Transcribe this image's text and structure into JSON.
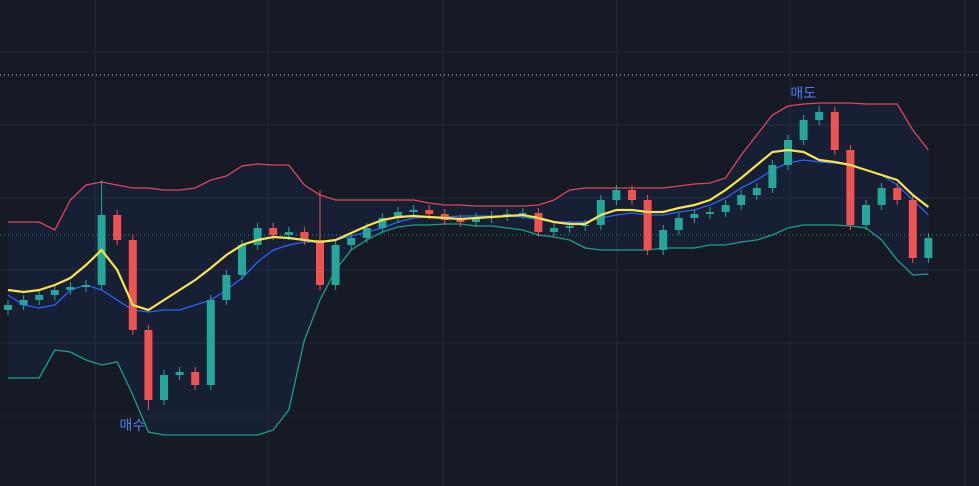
{
  "chart_data": {
    "type": "candlestick",
    "ylim": [
      0,
      486
    ],
    "up_color": "#26a69a",
    "down_color": "#ef5350",
    "open": [
      176,
      181,
      186,
      191,
      196,
      199,
      201,
      271,
      246,
      156,
      86,
      111,
      114,
      101,
      186,
      211,
      241,
      258,
      251,
      254,
      246,
      201,
      241,
      248,
      258,
      268,
      274,
      276,
      272,
      266,
      264,
      268,
      270,
      272,
      273,
      254,
      258,
      260,
      261,
      286,
      296,
      286,
      236,
      256,
      268,
      272,
      274,
      281,
      291,
      298,
      321,
      346,
      366,
      374,
      336,
      261,
      281,
      298,
      286,
      228
    ],
    "high": [
      186,
      191,
      196,
      201,
      204,
      206,
      306,
      276,
      251,
      161,
      116,
      119,
      119,
      191,
      216,
      246,
      263,
      263,
      259,
      259,
      296,
      246,
      253,
      263,
      273,
      279,
      281,
      281,
      277,
      271,
      273,
      275,
      277,
      278,
      278,
      263,
      265,
      266,
      291,
      301,
      301,
      291,
      261,
      273,
      277,
      279,
      286,
      296,
      303,
      326,
      351,
      371,
      380,
      379,
      341,
      286,
      303,
      303,
      291,
      253
    ],
    "low": [
      171,
      176,
      181,
      186,
      191,
      194,
      196,
      241,
      151,
      76,
      81,
      106,
      96,
      96,
      181,
      206,
      236,
      246,
      246,
      241,
      196,
      196,
      236,
      243,
      253,
      263,
      269,
      267,
      261,
      259,
      259,
      263,
      265,
      267,
      249,
      249,
      253,
      255,
      256,
      281,
      281,
      231,
      231,
      251,
      263,
      267,
      269,
      276,
      286,
      293,
      316,
      341,
      361,
      331,
      256,
      256,
      276,
      281,
      223,
      223
    ],
    "close": [
      181,
      186,
      191,
      196,
      199,
      201,
      271,
      246,
      156,
      86,
      111,
      114,
      101,
      186,
      211,
      241,
      258,
      251,
      254,
      246,
      201,
      241,
      248,
      258,
      268,
      274,
      276,
      272,
      266,
      264,
      268,
      270,
      272,
      273,
      254,
      258,
      260,
      261,
      286,
      296,
      286,
      236,
      256,
      268,
      272,
      274,
      281,
      291,
      298,
      321,
      346,
      366,
      374,
      336,
      261,
      281,
      298,
      286,
      228,
      248
    ],
    "upper": {
      "color": "#e0465a",
      "values": [
        264,
        264,
        264,
        256,
        286,
        301,
        304,
        301,
        298,
        298,
        296,
        296,
        298,
        306,
        310,
        320,
        322,
        321,
        321,
        301,
        291,
        286,
        286,
        286,
        286,
        286,
        286,
        283,
        281,
        281,
        280,
        280,
        280,
        280,
        281,
        286,
        296,
        298,
        298,
        298,
        298,
        298,
        298,
        300,
        302,
        303,
        308,
        331,
        351,
        371,
        380,
        382,
        383,
        383,
        383,
        382,
        382,
        382,
        356,
        336
      ]
    },
    "middle": {
      "color": "#2962ff",
      "values": [
        191,
        181,
        178,
        181,
        196,
        201,
        196,
        186,
        176,
        174,
        176,
        176,
        181,
        186,
        196,
        208,
        224,
        236,
        241,
        244,
        244,
        246,
        250,
        254,
        258,
        264,
        268,
        269,
        269,
        270,
        270,
        270,
        270,
        269,
        266,
        264,
        264,
        264,
        268,
        271,
        273,
        271,
        271,
        274,
        276,
        281,
        288,
        298,
        306,
        316,
        323,
        326,
        324,
        323,
        321,
        316,
        311,
        301,
        286,
        271
      ]
    },
    "lower": {
      "color": "#1f9e86",
      "values": [
        108,
        108,
        108,
        136,
        134,
        126,
        121,
        124,
        91,
        54,
        51,
        51,
        51,
        51,
        51,
        51,
        51,
        56,
        76,
        146,
        186,
        216,
        236,
        246,
        254,
        259,
        261,
        261,
        262,
        262,
        260,
        260,
        258,
        256,
        251,
        249,
        246,
        238,
        236,
        236,
        236,
        236,
        238,
        238,
        238,
        241,
        241,
        244,
        246,
        251,
        258,
        261,
        261,
        261,
        260,
        258,
        246,
        226,
        211,
        212
      ]
    },
    "ma": {
      "color": "#f5e44a",
      "values": [
        196,
        194,
        196,
        201,
        208,
        221,
        236,
        216,
        181,
        176,
        186,
        196,
        206,
        218,
        231,
        241,
        246,
        249,
        248,
        246,
        244,
        246,
        253,
        260,
        266,
        269,
        270,
        269,
        268,
        267,
        268,
        269,
        270,
        271,
        268,
        264,
        262,
        262,
        271,
        276,
        276,
        274,
        274,
        278,
        281,
        286,
        296,
        308,
        321,
        334,
        336,
        334,
        326,
        324,
        321,
        316,
        311,
        306,
        291,
        279
      ]
    },
    "buy_label": "매수",
    "sell_label": "매도",
    "label_color": "#4f7cf0"
  }
}
